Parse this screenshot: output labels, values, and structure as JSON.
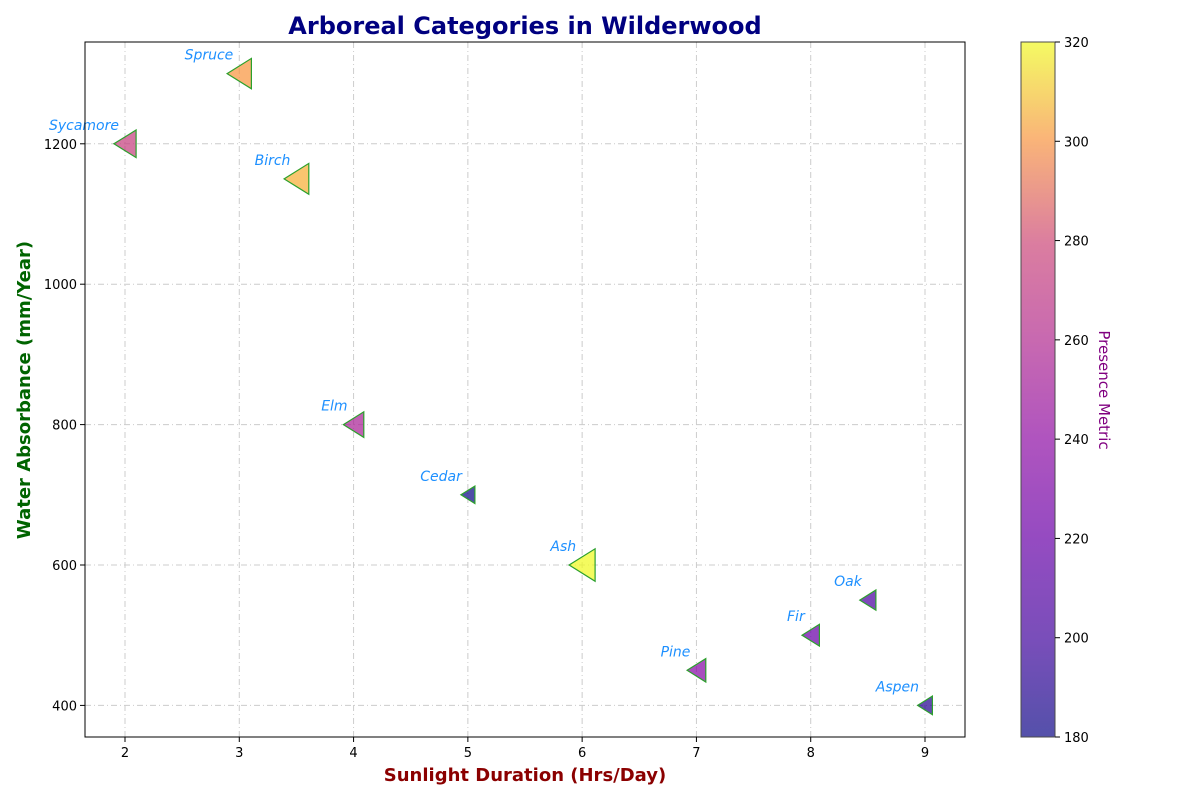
{
  "chart_data": {
    "type": "scatter",
    "title": "Arboreal Categories in Wilderwood",
    "xlabel": "Sunlight Duration (Hrs/Day)",
    "ylabel": "Water Absorbance (mm/Year)",
    "xlim": [
      1.65,
      9.35
    ],
    "ylim": [
      355,
      1345
    ],
    "xticks": [
      2,
      3,
      4,
      5,
      6,
      7,
      8,
      9
    ],
    "yticks": [
      400,
      600,
      800,
      1000,
      1200
    ],
    "grid": true,
    "marker": "triangle-left",
    "colorbar": {
      "label": "Presence Metric",
      "range": [
        180,
        320
      ],
      "ticks": [
        180,
        200,
        220,
        240,
        260,
        280,
        300,
        320
      ],
      "colormap": "plasma"
    },
    "points": [
      {
        "label": "Sycamore",
        "x": 2,
        "y": 1200,
        "presence": 275
      },
      {
        "label": "Spruce",
        "x": 3,
        "y": 1300,
        "presence": 300
      },
      {
        "label": "Birch",
        "x": 3.5,
        "y": 1150,
        "presence": 305
      },
      {
        "label": "Elm",
        "x": 4,
        "y": 800,
        "presence": 255
      },
      {
        "label": "Cedar",
        "x": 5,
        "y": 700,
        "presence": 180
      },
      {
        "label": "Ash",
        "x": 6,
        "y": 600,
        "presence": 320
      },
      {
        "label": "Pine",
        "x": 7,
        "y": 450,
        "presence": 235
      },
      {
        "label": "Fir",
        "x": 8,
        "y": 500,
        "presence": 220
      },
      {
        "label": "Oak",
        "x": 8.5,
        "y": 550,
        "presence": 205
      },
      {
        "label": "Aspen",
        "x": 9,
        "y": 400,
        "presence": 190
      }
    ],
    "colors": {
      "title": "#000080",
      "xlabel": "#8b0000",
      "ylabel": "#006400",
      "point_label": "#1e90ff",
      "marker_edge": "#2ca02c",
      "colorbar_label": "#800080"
    }
  }
}
